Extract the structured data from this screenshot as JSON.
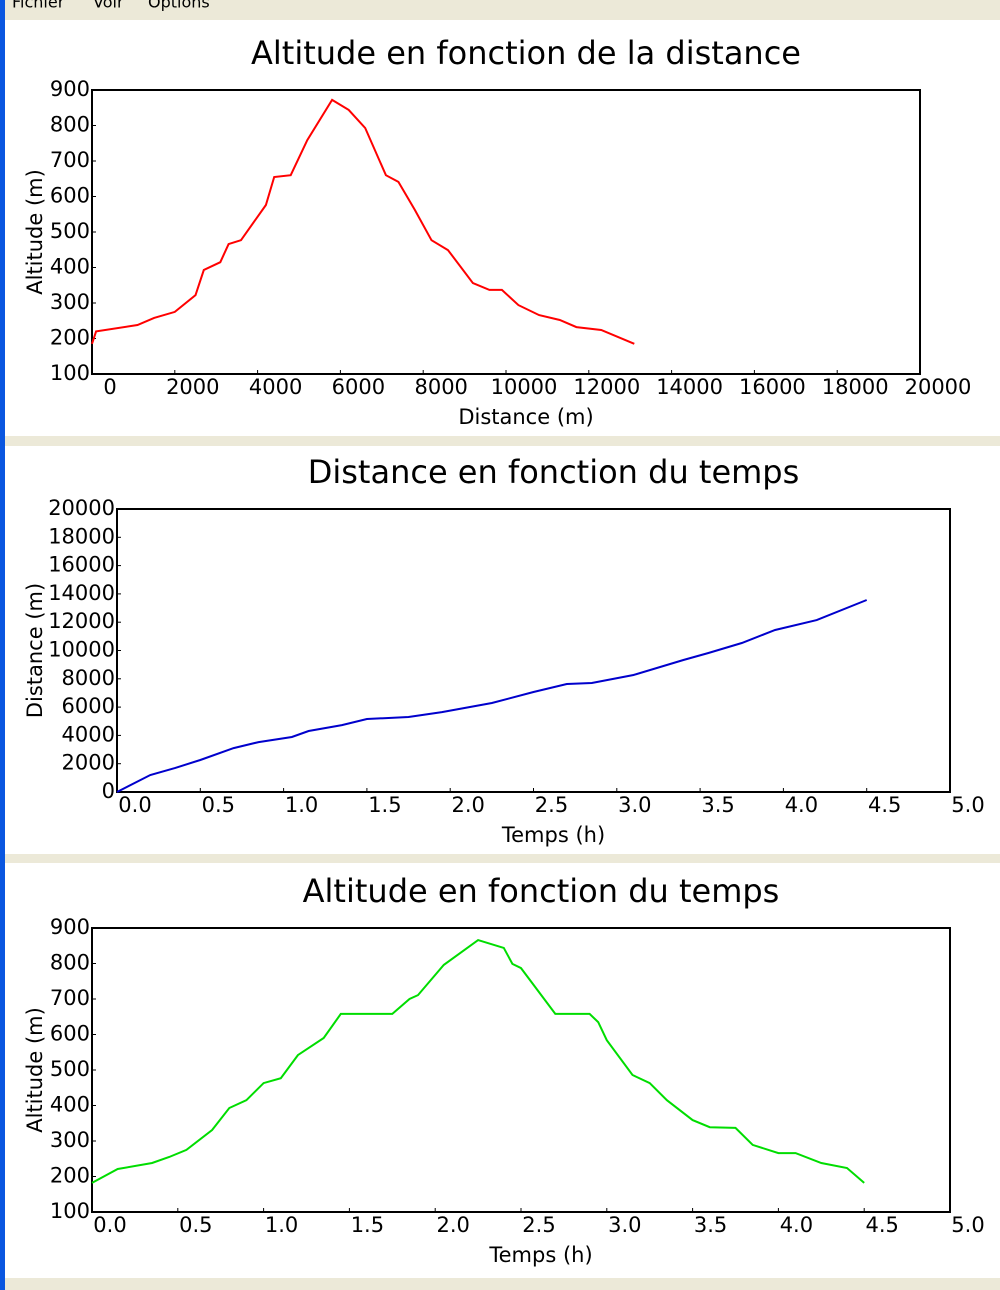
{
  "menu": [
    "Fichier",
    "Voir",
    "Options"
  ],
  "chart_data": [
    {
      "type": "line",
      "title": "Altitude en fonction de la distance",
      "x_label": "Distance (m)",
      "y_label": "Altitude (m)",
      "x": [
        0,
        100,
        1100,
        1500,
        2000,
        2500,
        2700,
        3100,
        3300,
        3600,
        4200,
        4400,
        4800,
        5200,
        5800,
        6200,
        6600,
        7100,
        7400,
        7800,
        8200,
        8600,
        9200,
        9600,
        9900,
        10300,
        10800,
        11300,
        11700,
        12300,
        13100
      ],
      "series": [
        {
          "name": "Altitude",
          "color": "#ff0000",
          "values": [
            185,
            220,
            238,
            258,
            275,
            322,
            393,
            415,
            466,
            477,
            576,
            655,
            660,
            759,
            872,
            844,
            793,
            660,
            641,
            562,
            477,
            449,
            356,
            337,
            337,
            294,
            266,
            252,
            232,
            224,
            185
          ]
        }
      ],
      "xlim": [
        0,
        20000
      ],
      "xticks": [
        0,
        2000,
        4000,
        6000,
        8000,
        10000,
        12000,
        14000,
        16000,
        18000,
        20000
      ],
      "ylim": [
        100,
        900
      ],
      "yticks": [
        100,
        200,
        300,
        400,
        500,
        600,
        700,
        800,
        900
      ],
      "grid": false
    },
    {
      "type": "line",
      "title": "Distance en fonction du temps",
      "x_label": "Temps (h)",
      "y_label": "Distance (m)",
      "x": [
        0,
        0.2,
        0.35,
        0.5,
        0.7,
        0.85,
        1.05,
        1.15,
        1.35,
        1.5,
        1.75,
        1.95,
        2.25,
        2.5,
        2.7,
        2.85,
        3.1,
        3.4,
        3.55,
        3.75,
        3.95,
        4.2,
        4.5
      ],
      "series": [
        {
          "name": "Distance",
          "color": "#0000cc",
          "values": [
            0,
            1200,
            1700,
            2260,
            3100,
            3530,
            3890,
            4310,
            4730,
            5160,
            5300,
            5650,
            6290,
            7070,
            7630,
            7700,
            8270,
            9330,
            9820,
            10530,
            11450,
            12150,
            13570
          ]
        }
      ],
      "xlim": [
        0,
        5
      ],
      "xticks": [
        {
          "value": 0,
          "label": "0.0"
        },
        0.5,
        {
          "value": 1,
          "label": "1.0"
        },
        1.5,
        {
          "value": 2,
          "label": "2.0"
        },
        2.5,
        {
          "value": 3,
          "label": "3.0"
        },
        3.5,
        {
          "value": 4,
          "label": "4.0"
        },
        4.5,
        {
          "value": 5,
          "label": "5.0"
        }
      ],
      "ylim": [
        0,
        20000
      ],
      "yticks": [
        0,
        2000,
        4000,
        6000,
        8000,
        10000,
        12000,
        14000,
        16000,
        18000,
        20000
      ],
      "grid": false
    },
    {
      "type": "line",
      "title": "Altitude en fonction du temps",
      "x_label": "Temps (h)",
      "y_label": "Altitude (m)",
      "x": [
        0,
        0.15,
        0.35,
        0.45,
        0.55,
        0.7,
        0.8,
        0.9,
        1.0,
        1.1,
        1.2,
        1.35,
        1.45,
        1.75,
        1.85,
        1.9,
        2.05,
        2.25,
        2.4,
        2.45,
        2.5,
        2.7,
        2.9,
        2.95,
        3.0,
        3.15,
        3.25,
        3.35,
        3.5,
        3.6,
        3.75,
        3.85,
        4.0,
        4.1,
        4.25,
        4.4,
        4.5
      ],
      "series": [
        {
          "name": "Altitude",
          "color": "#00dd00",
          "values": [
            182,
            221,
            238,
            255,
            275,
            331,
            393,
            415,
            463,
            477,
            542,
            590,
            658,
            658,
            700,
            711,
            796,
            866,
            844,
            799,
            787,
            658,
            658,
            635,
            584,
            486,
            463,
            415,
            359,
            339,
            337,
            289,
            266,
            266,
            238,
            224,
            182
          ]
        }
      ],
      "xlim": [
        0,
        5
      ],
      "xticks": [
        {
          "value": 0,
          "label": "0.0"
        },
        0.5,
        {
          "value": 1,
          "label": "1.0"
        },
        1.5,
        {
          "value": 2,
          "label": "2.0"
        },
        2.5,
        {
          "value": 3,
          "label": "3.0"
        },
        3.5,
        {
          "value": 4,
          "label": "4.0"
        },
        4.5,
        {
          "value": 5,
          "label": "5.0"
        }
      ],
      "ylim": [
        100,
        900
      ],
      "yticks": [
        100,
        200,
        300,
        400,
        500,
        600,
        700,
        800,
        900
      ],
      "grid": false
    }
  ]
}
